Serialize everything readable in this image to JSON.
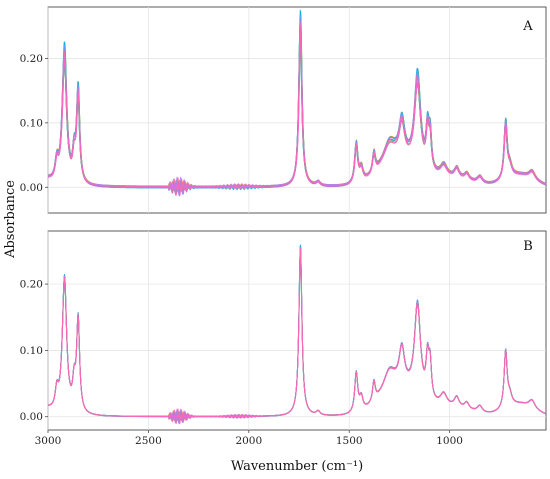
{
  "chart_data": {
    "type": "line",
    "xlabel": "Wavenumber (cm⁻¹)",
    "ylabel": "Absorbance",
    "xlim": [
      3000,
      520
    ],
    "x_reversed": true,
    "x_ticks": [
      3000,
      2500,
      2000,
      1500,
      1000
    ],
    "x_tick_labels": [
      "3000",
      "2500",
      "2000",
      "1500",
      "1000"
    ],
    "grid": true,
    "legend": "none",
    "panels": [
      {
        "label": "A",
        "ylim": [
          -0.04,
          0.28
        ],
        "y_ticks": [
          0.0,
          0.1,
          0.2
        ],
        "y_tick_labels": [
          "0.00",
          "0.10",
          "0.20"
        ],
        "spectrum_spread": 1.0,
        "noise_region_amplitude": 0.015
      },
      {
        "label": "B",
        "ylim": [
          -0.02,
          0.28
        ],
        "y_ticks": [
          0.0,
          0.1,
          0.2
        ],
        "y_tick_labels": [
          "0.00",
          "0.10",
          "0.20"
        ],
        "spectrum_spread": 0.25,
        "noise_region_amplitude": 0.012
      }
    ],
    "spectrum_peaks": [
      {
        "center": 2956,
        "height": 0.03,
        "width": 10
      },
      {
        "center": 2918,
        "height": 0.205,
        "width": 13
      },
      {
        "center": 2870,
        "height": 0.04,
        "width": 9
      },
      {
        "center": 2850,
        "height": 0.14,
        "width": 9
      },
      {
        "center": 1743,
        "height": 0.255,
        "width": 9
      },
      {
        "center": 1655,
        "height": 0.006,
        "width": 12
      },
      {
        "center": 1465,
        "height": 0.06,
        "width": 9
      },
      {
        "center": 1440,
        "height": 0.02,
        "width": 10
      },
      {
        "center": 1377,
        "height": 0.03,
        "width": 8
      },
      {
        "center": 1300,
        "height": 0.03,
        "width": 35
      },
      {
        "center": 1238,
        "height": 0.055,
        "width": 16
      },
      {
        "center": 1160,
        "height": 0.14,
        "width": 18
      },
      {
        "center": 1110,
        "height": 0.06,
        "width": 9
      },
      {
        "center": 1097,
        "height": 0.05,
        "width": 8
      },
      {
        "center": 1030,
        "height": 0.018,
        "width": 20
      },
      {
        "center": 965,
        "height": 0.015,
        "width": 14
      },
      {
        "center": 915,
        "height": 0.01,
        "width": 14
      },
      {
        "center": 850,
        "height": 0.01,
        "width": 15
      },
      {
        "center": 721,
        "height": 0.085,
        "width": 9
      },
      {
        "center": 700,
        "height": 0.015,
        "width": 12
      },
      {
        "center": 590,
        "height": 0.012,
        "width": 18
      }
    ],
    "broad_bands": [
      {
        "center": 3005,
        "height": 0.01,
        "width": 25
      },
      {
        "center": 1260,
        "height": 0.04,
        "width": 90
      },
      {
        "center": 1000,
        "height": 0.012,
        "width": 110
      },
      {
        "center": 650,
        "height": 0.018,
        "width": 70
      }
    ],
    "noise_region": [
      2400,
      1900
    ],
    "series_colors": [
      "#F8766D",
      "#E58700",
      "#C99800",
      "#A3A500",
      "#6BB100",
      "#00BA38",
      "#00BF7D",
      "#00C0AF",
      "#00BCD8",
      "#00B0F6",
      "#619CFF",
      "#B983FF",
      "#E76BF3",
      "#FD61D1",
      "#FF67A4"
    ],
    "series_count": 15
  }
}
